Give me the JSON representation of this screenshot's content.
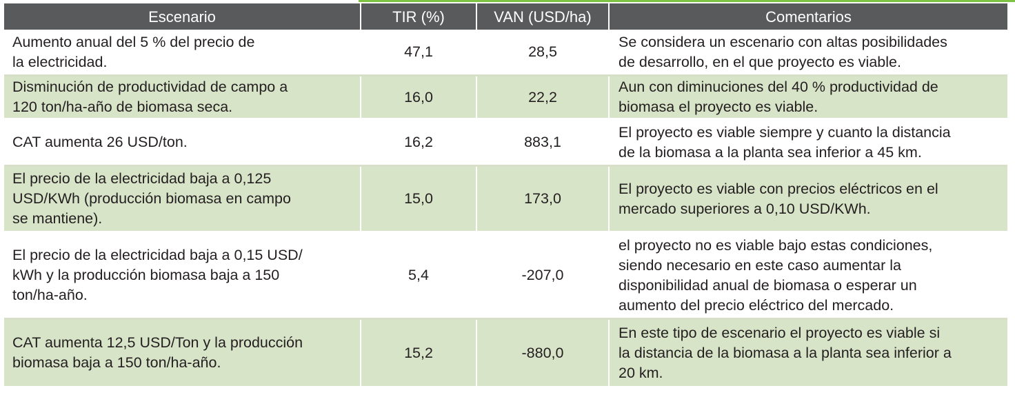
{
  "header": {
    "scenario": "Escenario",
    "tir": "TIR (%)",
    "van": "VAN (USD/ha)",
    "comments": "Comentarios"
  },
  "rows": [
    {
      "scenario": "Aumento anual del 5 % del precio de\nla electricidad.",
      "tir": "47,1",
      "van": "28,5",
      "comment": "Se considera un escenario con altas posibilidades\nde desarrollo, en el que proyecto es viable."
    },
    {
      "scenario": "Disminución de productividad de campo a\n120 ton/ha-año de biomasa seca.",
      "tir": "16,0",
      "van": "22,2",
      "comment": "Aun con diminuciones del 40 % productividad de\nbiomasa el proyecto es viable."
    },
    {
      "scenario": "CAT aumenta 26 USD/ton.",
      "tir": "16,2",
      "van": "883,1",
      "comment": "El proyecto es viable siempre y cuanto la distancia\nde la biomasa a la planta sea inferior a 45 km."
    },
    {
      "scenario": "El precio de la electricidad baja a 0,125\nUSD/KWh (producción biomasa en campo\nse mantiene).",
      "tir": "15,0",
      "van": "173,0",
      "comment": "El proyecto es viable con precios eléctricos en el\nmercado superiores a 0,10 USD/KWh."
    },
    {
      "scenario": "El precio de la electricidad baja a 0,15 USD/\nkWh y la producción biomasa baja a 150\nton/ha-año.",
      "tir": "5,4",
      "van": "-207,0",
      "comment": "el proyecto no es viable bajo estas condiciones,\nsiendo necesario en este caso aumentar la\ndisponibilidad anual de biomasa o esperar un\naumento del precio eléctrico del mercado."
    },
    {
      "scenario": "CAT aumenta 12,5 USD/Ton y la producción\nbiomasa baja a 150 ton/ha-año.",
      "tir": "15,2",
      "van": "-880,0",
      "comment": "En este tipo de escenario el proyecto es viable si\nla distancia de la biomasa a la planta sea inferior a\n20 km."
    }
  ],
  "colors": {
    "header_bg": "#595a5c",
    "row_green": "#d8e4c8",
    "row_white": "#ffffff",
    "accent": "#7dc242"
  }
}
